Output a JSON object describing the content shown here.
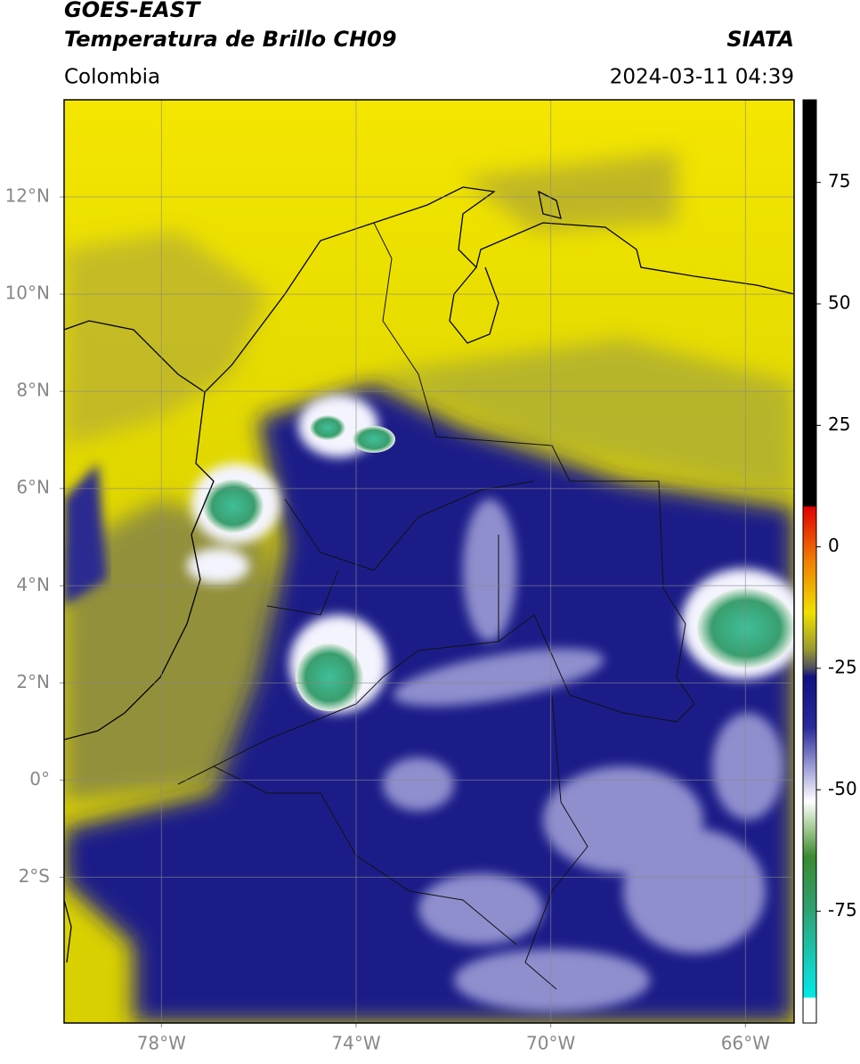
{
  "header": {
    "title": "GOES-EAST",
    "subtitle": "Temperatura de Brillo CH09",
    "source": "SIATA",
    "region": "Colombia",
    "datetime": "2024-03-11 04:39"
  },
  "map": {
    "lonlim": [
      -80,
      -65
    ],
    "latlim": [
      -5,
      14
    ],
    "lon_ticks": [
      {
        "value": -78,
        "label": "78°W"
      },
      {
        "value": -74,
        "label": "74°W"
      },
      {
        "value": -70,
        "label": "70°W"
      },
      {
        "value": -66,
        "label": "66°W"
      }
    ],
    "lat_ticks": [
      {
        "value": 12,
        "label": "12°N"
      },
      {
        "value": 10,
        "label": "10°N"
      },
      {
        "value": 8,
        "label": "8°N"
      },
      {
        "value": 6,
        "label": "6°N"
      },
      {
        "value": 4,
        "label": "4°N"
      },
      {
        "value": 2,
        "label": "2°N"
      },
      {
        "value": 0,
        "label": "0°"
      },
      {
        "value": -2,
        "label": "2°S"
      }
    ]
  },
  "colorbar": {
    "lim": [
      -98,
      92
    ],
    "ticks": [
      75,
      50,
      25,
      0,
      -25,
      -50,
      -75
    ]
  }
}
